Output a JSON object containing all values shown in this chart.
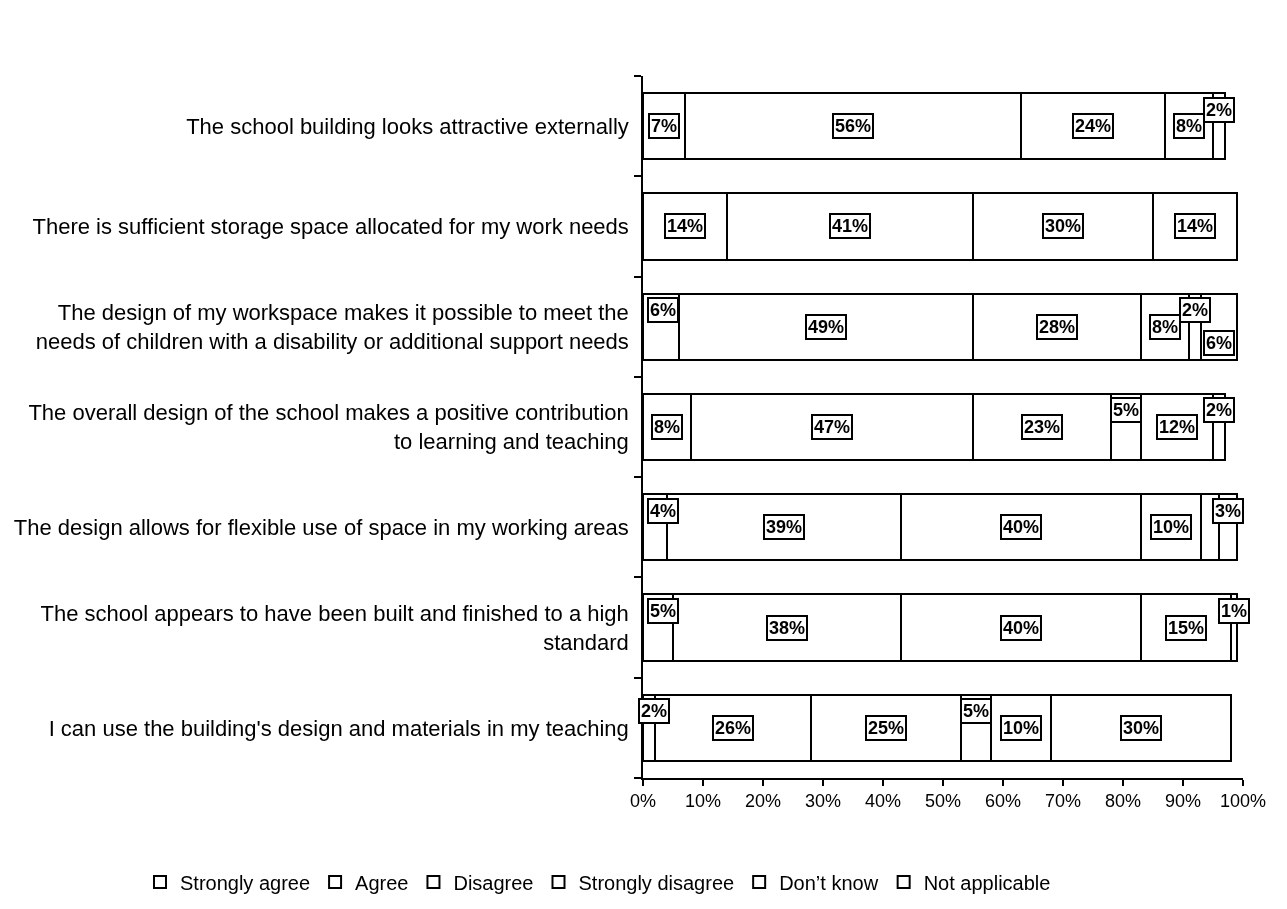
{
  "chart_data": {
    "type": "bar",
    "orientation": "horizontal",
    "stacked": true,
    "legend": "bottom",
    "categories": [
      "The school building looks attractive externally",
      "There is sufficient storage space allocated for my work needs",
      "The design of my workspace makes it possible to meet the\nneeds of children with a disability or additional support needs",
      "The overall design of the school makes a positive contribution\nto learning and teaching",
      "The design allows for flexible use of space in my working areas",
      "The school appears to have been built and finished to a high\nstandard",
      "I can use the building's design and materials in my teaching"
    ],
    "xlim": [
      0,
      100
    ],
    "xticks": [
      {
        "value": 0,
        "label": "0%"
      },
      {
        "value": 10,
        "label": "10%"
      },
      {
        "value": 20,
        "label": "20%"
      },
      {
        "value": 30,
        "label": "30%"
      },
      {
        "value": 40,
        "label": "40%"
      },
      {
        "value": 50,
        "label": "50%"
      },
      {
        "value": 60,
        "label": "60%"
      },
      {
        "value": 70,
        "label": "70%"
      },
      {
        "value": 80,
        "label": "80%"
      },
      {
        "value": 90,
        "label": "90%"
      },
      {
        "value": 100,
        "label": "100%"
      }
    ],
    "series": [
      {
        "name": "Strongly agree",
        "color": "#ffffff",
        "values": [
          7,
          14,
          6,
          8,
          4,
          5,
          2
        ],
        "value_labels": [
          "7%",
          "14%",
          "6%",
          "8%",
          "4%",
          "5%",
          "2%"
        ]
      },
      {
        "name": "Agree",
        "color": "#ffffff",
        "values": [
          56,
          41,
          49,
          47,
          39,
          38,
          26
        ],
        "value_labels": [
          "56%",
          "41%",
          "49%",
          "47%",
          "39%",
          "38%",
          "26%"
        ]
      },
      {
        "name": "Disagree",
        "color": "#ffffff",
        "values": [
          24,
          30,
          28,
          23,
          40,
          40,
          25
        ],
        "value_labels": [
          "24%",
          "30%",
          "28%",
          "23%",
          "40%",
          "40%",
          "25%"
        ]
      },
      {
        "name": "Strongly disagree",
        "color": "#ffffff",
        "values": [
          8,
          14,
          8,
          5,
          10,
          15,
          5
        ],
        "value_labels": [
          "8%",
          "14%",
          "8%",
          "5%",
          "10%",
          "15%",
          "5%"
        ]
      },
      {
        "name": "Don’t know",
        "color": "#ffffff",
        "values": [
          null,
          null,
          2,
          12,
          3,
          1,
          10
        ],
        "value_labels": [
          null,
          null,
          "2%",
          "12%",
          null,
          "1%",
          "10%"
        ]
      },
      {
        "name": "Not applicable",
        "color": "#ffffff",
        "values": [
          2,
          null,
          6,
          2,
          3,
          null,
          30
        ],
        "value_labels": [
          "2%",
          null,
          "6%",
          "2%",
          "3%",
          null,
          "30%"
        ]
      }
    ]
  }
}
